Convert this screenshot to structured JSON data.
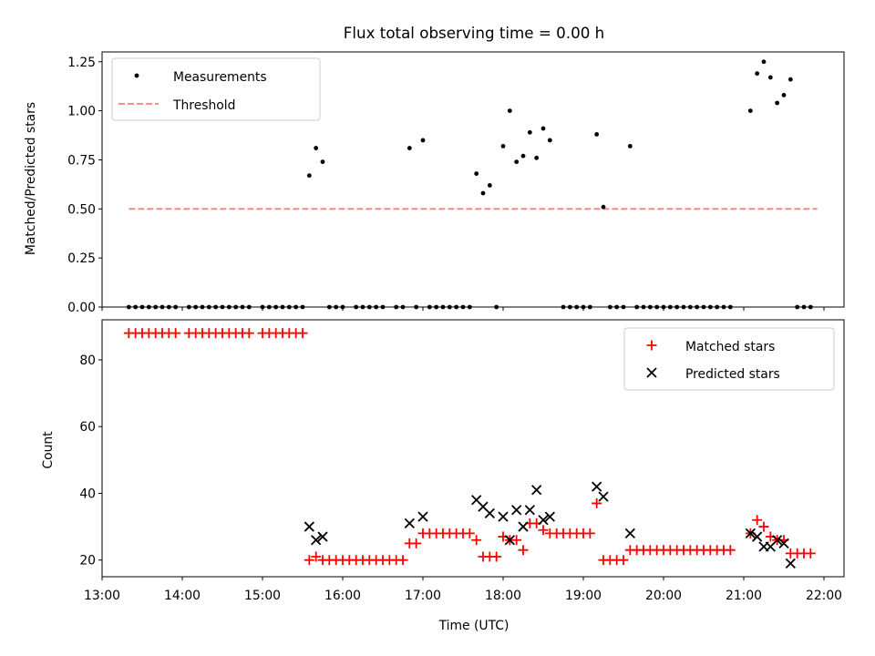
{
  "chart_data": [
    {
      "type": "scatter",
      "title": "Flux total observing time = 0.00 h",
      "xlabel": "",
      "ylabel": "Matched/Predicted stars",
      "xlim": [
        "13:00",
        "22:15"
      ],
      "ylim": [
        0,
        1.3
      ],
      "y_ticks": [
        "0.00",
        "0.25",
        "0.50",
        "0.75",
        "1.00",
        "1.25"
      ],
      "legend_position": "top-left",
      "series": [
        {
          "name": "Measurements",
          "color": "#000000",
          "marker": "dot",
          "points": [
            [
              "13:20",
              0
            ],
            [
              "13:25",
              0
            ],
            [
              "13:30",
              0
            ],
            [
              "13:35",
              0
            ],
            [
              "13:40",
              0
            ],
            [
              "13:45",
              0
            ],
            [
              "13:50",
              0
            ],
            [
              "13:55",
              0
            ],
            [
              "14:05",
              0
            ],
            [
              "14:10",
              0
            ],
            [
              "14:15",
              0
            ],
            [
              "14:20",
              0
            ],
            [
              "14:25",
              0
            ],
            [
              "14:30",
              0
            ],
            [
              "14:35",
              0
            ],
            [
              "14:40",
              0
            ],
            [
              "14:45",
              0
            ],
            [
              "14:50",
              0
            ],
            [
              "15:00",
              0
            ],
            [
              "15:05",
              0
            ],
            [
              "15:10",
              0
            ],
            [
              "15:15",
              0
            ],
            [
              "15:20",
              0
            ],
            [
              "15:25",
              0
            ],
            [
              "15:30",
              0
            ],
            [
              "15:35",
              0.67
            ],
            [
              "15:40",
              0.81
            ],
            [
              "15:45",
              0.74
            ],
            [
              "15:50",
              0
            ],
            [
              "15:55",
              0
            ],
            [
              "16:00",
              0
            ],
            [
              "16:10",
              0
            ],
            [
              "16:15",
              0
            ],
            [
              "16:20",
              0
            ],
            [
              "16:25",
              0
            ],
            [
              "16:30",
              0
            ],
            [
              "16:40",
              0
            ],
            [
              "16:45",
              0
            ],
            [
              "16:50",
              0.81
            ],
            [
              "16:55",
              0
            ],
            [
              "17:00",
              0.85
            ],
            [
              "17:05",
              0
            ],
            [
              "17:10",
              0
            ],
            [
              "17:15",
              0
            ],
            [
              "17:20",
              0
            ],
            [
              "17:25",
              0
            ],
            [
              "17:30",
              0
            ],
            [
              "17:35",
              0
            ],
            [
              "17:40",
              0.68
            ],
            [
              "17:45",
              0.58
            ],
            [
              "17:50",
              0.62
            ],
            [
              "17:55",
              0
            ],
            [
              "18:00",
              0.82
            ],
            [
              "18:05",
              1.0
            ],
            [
              "18:10",
              0.74
            ],
            [
              "18:15",
              0.77
            ],
            [
              "18:20",
              0.89
            ],
            [
              "18:25",
              0.76
            ],
            [
              "18:30",
              0.91
            ],
            [
              "18:35",
              0.85
            ],
            [
              "18:45",
              0
            ],
            [
              "18:50",
              0
            ],
            [
              "18:55",
              0
            ],
            [
              "19:00",
              0
            ],
            [
              "19:05",
              0
            ],
            [
              "19:10",
              0.88
            ],
            [
              "19:15",
              0.51
            ],
            [
              "19:20",
              0
            ],
            [
              "19:25",
              0
            ],
            [
              "19:30",
              0
            ],
            [
              "19:35",
              0.82
            ],
            [
              "19:40",
              0
            ],
            [
              "19:45",
              0
            ],
            [
              "19:50",
              0
            ],
            [
              "19:55",
              0
            ],
            [
              "20:00",
              0
            ],
            [
              "20:05",
              0
            ],
            [
              "20:10",
              0
            ],
            [
              "20:15",
              0
            ],
            [
              "20:20",
              0
            ],
            [
              "20:25",
              0
            ],
            [
              "20:30",
              0
            ],
            [
              "20:35",
              0
            ],
            [
              "20:40",
              0
            ],
            [
              "20:45",
              0
            ],
            [
              "20:50",
              0
            ],
            [
              "21:05",
              1.0
            ],
            [
              "21:10",
              1.19
            ],
            [
              "21:15",
              1.25
            ],
            [
              "21:20",
              1.17
            ],
            [
              "21:25",
              1.04
            ],
            [
              "21:30",
              1.08
            ],
            [
              "21:35",
              1.16
            ],
            [
              "21:40",
              0
            ],
            [
              "21:45",
              0
            ],
            [
              "21:50",
              0
            ]
          ]
        },
        {
          "name": "Threshold",
          "color": "#ff7f7f",
          "style": "dashed",
          "points": [
            [
              "13:20",
              0.5
            ],
            [
              "21:55",
              0.5
            ]
          ]
        }
      ]
    },
    {
      "type": "scatter",
      "title": "",
      "xlabel": "Time (UTC)",
      "ylabel": "Count",
      "xlim": [
        "13:00",
        "22:15"
      ],
      "ylim": [
        15,
        92
      ],
      "y_ticks": [
        "20",
        "40",
        "60",
        "80"
      ],
      "x_ticks": [
        "13:00",
        "14:00",
        "15:00",
        "16:00",
        "17:00",
        "18:00",
        "19:00",
        "20:00",
        "21:00",
        "22:00"
      ],
      "legend_position": "top-right",
      "series": [
        {
          "name": "Matched stars",
          "color": "#ff0000",
          "marker": "plus",
          "points": [
            [
              "13:20",
              88
            ],
            [
              "13:25",
              88
            ],
            [
              "13:30",
              88
            ],
            [
              "13:35",
              88
            ],
            [
              "13:40",
              88
            ],
            [
              "13:45",
              88
            ],
            [
              "13:50",
              88
            ],
            [
              "13:55",
              88
            ],
            [
              "14:05",
              88
            ],
            [
              "14:10",
              88
            ],
            [
              "14:15",
              88
            ],
            [
              "14:20",
              88
            ],
            [
              "14:25",
              88
            ],
            [
              "14:30",
              88
            ],
            [
              "14:35",
              88
            ],
            [
              "14:40",
              88
            ],
            [
              "14:45",
              88
            ],
            [
              "14:50",
              88
            ],
            [
              "15:00",
              88
            ],
            [
              "15:05",
              88
            ],
            [
              "15:10",
              88
            ],
            [
              "15:15",
              88
            ],
            [
              "15:20",
              88
            ],
            [
              "15:25",
              88
            ],
            [
              "15:30",
              88
            ],
            [
              "15:35",
              20
            ],
            [
              "15:40",
              21
            ],
            [
              "15:45",
              20
            ],
            [
              "15:50",
              20
            ],
            [
              "15:55",
              20
            ],
            [
              "16:00",
              20
            ],
            [
              "16:05",
              20
            ],
            [
              "16:10",
              20
            ],
            [
              "16:15",
              20
            ],
            [
              "16:20",
              20
            ],
            [
              "16:25",
              20
            ],
            [
              "16:30",
              20
            ],
            [
              "16:35",
              20
            ],
            [
              "16:40",
              20
            ],
            [
              "16:45",
              20
            ],
            [
              "16:50",
              25
            ],
            [
              "16:55",
              25
            ],
            [
              "17:00",
              28
            ],
            [
              "17:05",
              28
            ],
            [
              "17:10",
              28
            ],
            [
              "17:15",
              28
            ],
            [
              "17:20",
              28
            ],
            [
              "17:25",
              28
            ],
            [
              "17:30",
              28
            ],
            [
              "17:35",
              28
            ],
            [
              "17:40",
              26
            ],
            [
              "17:45",
              21
            ],
            [
              "17:50",
              21
            ],
            [
              "17:55",
              21
            ],
            [
              "18:00",
              27
            ],
            [
              "18:05",
              26
            ],
            [
              "18:10",
              26
            ],
            [
              "18:15",
              23
            ],
            [
              "18:20",
              31
            ],
            [
              "18:25",
              31
            ],
            [
              "18:30",
              29
            ],
            [
              "18:35",
              28
            ],
            [
              "18:40",
              28
            ],
            [
              "18:45",
              28
            ],
            [
              "18:50",
              28
            ],
            [
              "18:55",
              28
            ],
            [
              "19:00",
              28
            ],
            [
              "19:05",
              28
            ],
            [
              "19:10",
              37
            ],
            [
              "19:15",
              20
            ],
            [
              "19:20",
              20
            ],
            [
              "19:25",
              20
            ],
            [
              "19:30",
              20
            ],
            [
              "19:35",
              23
            ],
            [
              "19:40",
              23
            ],
            [
              "19:45",
              23
            ],
            [
              "19:50",
              23
            ],
            [
              "19:55",
              23
            ],
            [
              "20:00",
              23
            ],
            [
              "20:05",
              23
            ],
            [
              "20:10",
              23
            ],
            [
              "20:15",
              23
            ],
            [
              "20:20",
              23
            ],
            [
              "20:25",
              23
            ],
            [
              "20:30",
              23
            ],
            [
              "20:35",
              23
            ],
            [
              "20:40",
              23
            ],
            [
              "20:45",
              23
            ],
            [
              "20:50",
              23
            ],
            [
              "21:05",
              28
            ],
            [
              "21:10",
              32
            ],
            [
              "21:15",
              30
            ],
            [
              "21:20",
              27
            ],
            [
              "21:25",
              26
            ],
            [
              "21:30",
              26
            ],
            [
              "21:35",
              22
            ],
            [
              "21:40",
              22
            ],
            [
              "21:45",
              22
            ],
            [
              "21:50",
              22
            ]
          ]
        },
        {
          "name": "Predicted stars",
          "color": "#000000",
          "marker": "x",
          "points": [
            [
              "15:35",
              30
            ],
            [
              "15:40",
              26
            ],
            [
              "15:45",
              27
            ],
            [
              "16:50",
              31
            ],
            [
              "17:00",
              33
            ],
            [
              "17:40",
              38
            ],
            [
              "17:45",
              36
            ],
            [
              "17:50",
              34
            ],
            [
              "18:00",
              33
            ],
            [
              "18:05",
              26
            ],
            [
              "18:10",
              35
            ],
            [
              "18:15",
              30
            ],
            [
              "18:20",
              35
            ],
            [
              "18:25",
              41
            ],
            [
              "18:30",
              32
            ],
            [
              "18:35",
              33
            ],
            [
              "19:10",
              42
            ],
            [
              "19:15",
              39
            ],
            [
              "19:35",
              28
            ],
            [
              "21:05",
              28
            ],
            [
              "21:10",
              27
            ],
            [
              "21:15",
              24
            ],
            [
              "21:20",
              24
            ],
            [
              "21:25",
              26
            ],
            [
              "21:30",
              25
            ],
            [
              "21:35",
              19
            ]
          ]
        }
      ]
    }
  ]
}
